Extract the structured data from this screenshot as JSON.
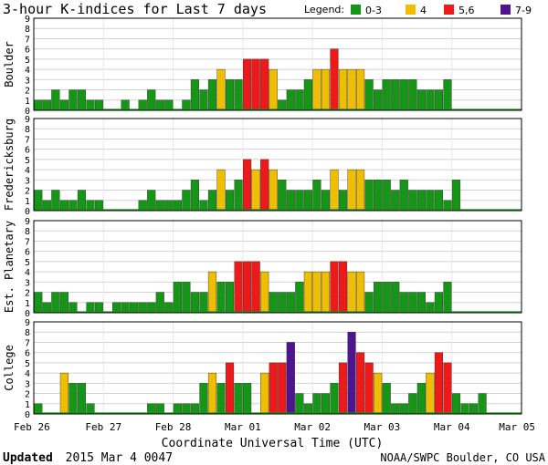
{
  "chart_data": {
    "type": "bar",
    "title": "3-hour K-indices for Last 7 days",
    "legend": {
      "label": "Legend:",
      "placement": "top-right",
      "entries": [
        {
          "label": "0-3",
          "color": "#169616"
        },
        {
          "label": "4",
          "color": "#f0be00"
        },
        {
          "label": "5,6",
          "color": "#ee1a1a"
        },
        {
          "label": "7-9",
          "color": "#4f1490"
        }
      ]
    },
    "xlabel": "Coordinate Universal Time (UTC)",
    "x_ticks": [
      "Feb 26",
      "Feb 27",
      "Feb 28",
      "Mar 01",
      "Mar 02",
      "Mar 03",
      "Mar 04",
      "Mar 05"
    ],
    "ylim": [
      0,
      9
    ],
    "y_ticks": [
      "0",
      "1",
      "2",
      "3",
      "4",
      "5",
      "6",
      "7",
      "8",
      "9"
    ],
    "grid": true,
    "series": [
      {
        "name": "Boulder",
        "values": [
          1,
          1,
          2,
          1,
          2,
          2,
          1,
          1,
          0,
          0,
          1,
          0,
          1,
          2,
          1,
          1,
          0,
          1,
          3,
          2,
          3,
          4,
          3,
          3,
          5,
          5,
          5,
          4,
          1,
          2,
          2,
          3,
          4,
          4,
          6,
          4,
          4,
          4,
          3,
          2,
          3,
          3,
          3,
          3,
          2,
          2,
          2,
          3
        ]
      },
      {
        "name": "Fredericksburg",
        "values": [
          2,
          1,
          2,
          1,
          1,
          2,
          1,
          1,
          0,
          0,
          0,
          0,
          1,
          2,
          1,
          1,
          1,
          2,
          3,
          1,
          2,
          4,
          2,
          3,
          5,
          4,
          5,
          4,
          3,
          2,
          2,
          2,
          3,
          2,
          4,
          2,
          4,
          4,
          3,
          3,
          3,
          2,
          3,
          2,
          2,
          2,
          2,
          1,
          3
        ]
      },
      {
        "name": "Est. Planetary",
        "values": [
          2,
          1,
          2,
          2,
          1,
          0,
          1,
          1,
          0,
          1,
          1,
          1,
          1,
          1,
          2,
          1,
          3,
          3,
          2,
          2,
          4,
          3,
          3,
          5,
          5,
          5,
          4,
          2,
          2,
          2,
          3,
          4,
          4,
          4,
          5,
          5,
          4,
          4,
          2,
          3,
          3,
          3,
          2,
          2,
          2,
          1,
          2,
          3
        ]
      },
      {
        "name": "College",
        "values": [
          1,
          0,
          0,
          4,
          3,
          3,
          1,
          0,
          0,
          0,
          0,
          0,
          0,
          1,
          1,
          0,
          1,
          1,
          1,
          3,
          4,
          3,
          5,
          3,
          3,
          0,
          4,
          5,
          5,
          7,
          2,
          1,
          2,
          2,
          3,
          5,
          8,
          6,
          5,
          4,
          3,
          1,
          1,
          2,
          3,
          4,
          6,
          5,
          2,
          1,
          1,
          2
        ]
      }
    ]
  },
  "footer": {
    "updated_label": "Updated",
    "updated_value": "2015 Mar  4 0047",
    "credit": "NOAA/SWPC Boulder, CO USA"
  }
}
